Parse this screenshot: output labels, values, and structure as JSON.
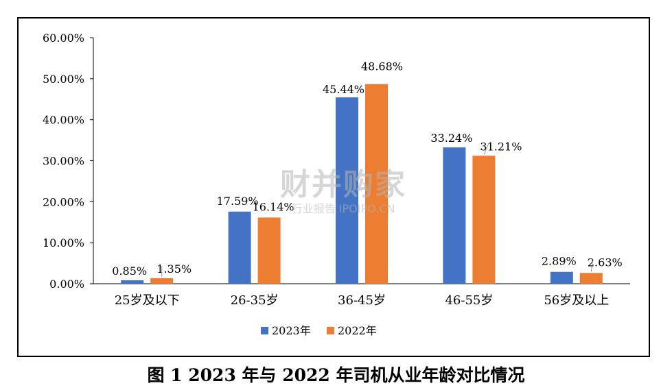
{
  "chart_data": {
    "type": "bar",
    "categories": [
      "25岁及以下",
      "26-35岁",
      "36-45岁",
      "46-55岁",
      "56岁及以上"
    ],
    "series": [
      {
        "name": "2023年",
        "values": [
          0.85,
          17.59,
          45.44,
          33.24,
          2.89
        ],
        "labels": [
          "0.85%",
          "17.59%",
          "45.44%",
          "33.24%",
          "2.89%"
        ],
        "color": "#4472C4"
      },
      {
        "name": "2022年",
        "values": [
          1.35,
          16.14,
          48.68,
          31.21,
          2.63
        ],
        "labels": [
          "1.35%",
          "16.14%",
          "48.68%",
          "31.21%",
          "2.63%"
        ],
        "color": "#ED7D31"
      }
    ],
    "yticks": [
      "0.00%",
      "10.00%",
      "20.00%",
      "30.00%",
      "40.00%",
      "50.00%",
      "60.00%"
    ],
    "ylim": [
      0,
      60
    ],
    "legend_position": "bottom"
  },
  "caption": "图 1 2023 年与 2022 年司机从业年龄对比情况",
  "watermark": {
    "main": "财并购家",
    "sub": "行业报告 IPOIPO.CN"
  }
}
